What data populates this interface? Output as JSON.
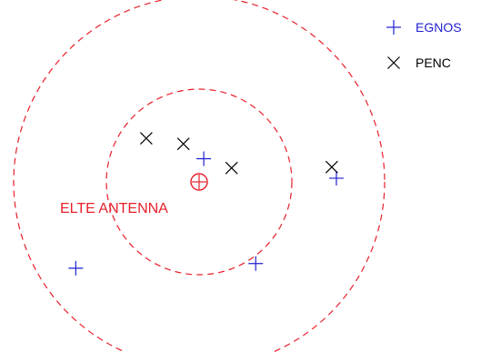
{
  "chart_data": {
    "type": "scatter",
    "title": "",
    "xlabel": "",
    "ylabel": "",
    "grid": false,
    "legend_position": "top-right",
    "series": [
      {
        "name": "EGNOS",
        "marker": "plus",
        "color": "#1f1fd1",
        "points": [
          {
            "x": 0.05,
            "y": 0.25
          },
          {
            "x": 1.48,
            "y": 0.04
          },
          {
            "x": -1.33,
            "y": -0.93
          },
          {
            "x": 0.61,
            "y": -0.88
          }
        ]
      },
      {
        "name": "PENC",
        "marker": "cross",
        "color": "#000000",
        "points": [
          {
            "x": -0.57,
            "y": 0.47
          },
          {
            "x": -0.17,
            "y": 0.41
          },
          {
            "x": 0.35,
            "y": 0.15
          },
          {
            "x": 1.43,
            "y": 0.16
          }
        ]
      }
    ],
    "reference": {
      "label": "ELTE ANTENNA",
      "color": "#e8202a",
      "x": 0,
      "y": 0
    },
    "rings": {
      "color": "#e8202a",
      "style": "dashed",
      "radii": [
        1,
        2
      ]
    }
  }
}
